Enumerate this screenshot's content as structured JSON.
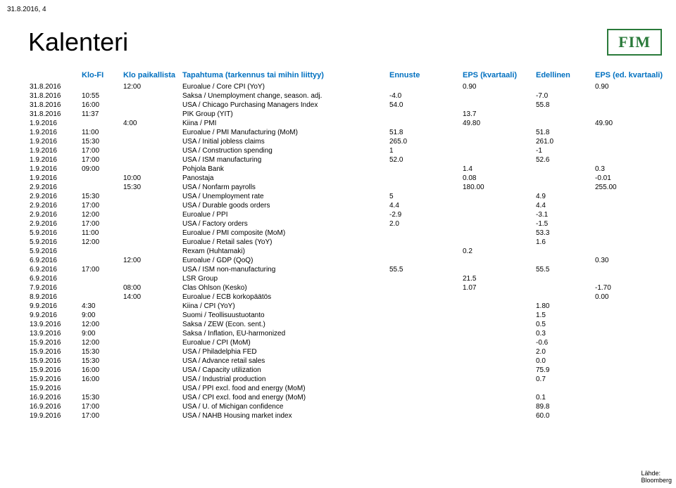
{
  "pageHeader": "31.8.2016, 4",
  "title": "Kalenteri",
  "logo": "FIM",
  "columns": {
    "date": "",
    "fi": "Klo-FI",
    "local": "Klo paikallista",
    "event": "Tapahtuma (tarkennus tai mihin liittyy)",
    "est": "Ennuste",
    "eps": "EPS (kvartaali)",
    "prev": "Edellinen",
    "eps2": "EPS (ed. kvartaali)"
  },
  "source": {
    "label": "Lähde:",
    "value": "Bloomberg"
  },
  "rows": [
    {
      "date": "31.8.2016",
      "fi": "",
      "local": "12:00",
      "event": "Euroalue / Core CPI (YoY)",
      "est": "",
      "eps": "0.90",
      "prev": "",
      "eps2": "0.90"
    },
    {
      "date": "31.8.2016",
      "fi": "10:55",
      "local": "",
      "event": "Saksa / Unemployment change, season. adj.",
      "est": "-4.0",
      "eps": "",
      "prev": "-7.0",
      "eps2": ""
    },
    {
      "date": "31.8.2016",
      "fi": "16:00",
      "local": "",
      "event": "USA / Chicago Purchasing Managers Index",
      "est": "54.0",
      "eps": "",
      "prev": "55.8",
      "eps2": ""
    },
    {
      "date": "31.8.2016",
      "fi": "11:37",
      "local": "",
      "event": "PIK Group (YIT)",
      "est": "",
      "eps": "13.7",
      "prev": "",
      "eps2": ""
    },
    {
      "date": "1.9.2016",
      "fi": "",
      "local": "4:00",
      "event": "Kiina / PMI",
      "est": "",
      "eps": "49.80",
      "prev": "",
      "eps2": "49.90"
    },
    {
      "date": "1.9.2016",
      "fi": "11:00",
      "local": "",
      "event": "Euroalue / PMI Manufacturing (MoM)",
      "est": "51.8",
      "eps": "",
      "prev": "51.8",
      "eps2": ""
    },
    {
      "date": "1.9.2016",
      "fi": "15:30",
      "local": "",
      "event": "USA / Initial jobless claims",
      "est": "265.0",
      "eps": "",
      "prev": "261.0",
      "eps2": ""
    },
    {
      "date": "1.9.2016",
      "fi": "17:00",
      "local": "",
      "event": "USA / Construction spending",
      "est": "1",
      "eps": "",
      "prev": "-1",
      "eps2": ""
    },
    {
      "date": "1.9.2016",
      "fi": "17:00",
      "local": "",
      "event": "USA / ISM manufacturing",
      "est": "52.0",
      "eps": "",
      "prev": "52.6",
      "eps2": ""
    },
    {
      "date": "1.9.2016",
      "fi": "09:00",
      "local": "",
      "event": "Pohjola Bank",
      "est": "",
      "eps": "1.4",
      "prev": "",
      "eps2": "0.3"
    },
    {
      "date": "1.9.2016",
      "fi": "",
      "local": "10:00",
      "event": "Panostaja",
      "est": "",
      "eps": "0.08",
      "prev": "",
      "eps2": "-0.01"
    },
    {
      "date": "2.9.2016",
      "fi": "",
      "local": "15:30",
      "event": "USA / Nonfarm payrolls",
      "est": "",
      "eps": "180.00",
      "prev": "",
      "eps2": "255.00"
    },
    {
      "date": "2.9.2016",
      "fi": "15:30",
      "local": "",
      "event": "USA / Unemployment rate",
      "est": "5",
      "eps": "",
      "prev": "4.9",
      "eps2": ""
    },
    {
      "date": "2.9.2016",
      "fi": "17:00",
      "local": "",
      "event": "USA / Durable goods orders",
      "est": "4.4",
      "eps": "",
      "prev": "4.4",
      "eps2": ""
    },
    {
      "date": "2.9.2016",
      "fi": "12:00",
      "local": "",
      "event": "Euroalue / PPI",
      "est": "-2.9",
      "eps": "",
      "prev": "-3.1",
      "eps2": ""
    },
    {
      "date": "2.9.2016",
      "fi": "17:00",
      "local": "",
      "event": "USA / Factory orders",
      "est": "2.0",
      "eps": "",
      "prev": "-1.5",
      "eps2": ""
    },
    {
      "date": "5.9.2016",
      "fi": "11:00",
      "local": "",
      "event": "Euroalue / PMI composite (MoM)",
      "est": "",
      "eps": "",
      "prev": "53.3",
      "eps2": ""
    },
    {
      "date": "5.9.2016",
      "fi": "12:00",
      "local": "",
      "event": "Euroalue / Retail sales (YoY)",
      "est": "",
      "eps": "",
      "prev": "1.6",
      "eps2": ""
    },
    {
      "date": "5.9.2016",
      "fi": "",
      "local": "",
      "event": "Rexam  (Huhtamaki)",
      "est": "",
      "eps": "0.2",
      "prev": "",
      "eps2": ""
    },
    {
      "date": "6.9.2016",
      "fi": "",
      "local": "12:00",
      "event": "Euroalue / GDP (QoQ)",
      "est": "",
      "eps": "",
      "prev": "",
      "eps2": "0.30"
    },
    {
      "date": "6.9.2016",
      "fi": "17:00",
      "local": "",
      "event": "USA / ISM non-manufacturing",
      "est": "55.5",
      "eps": "",
      "prev": "55.5",
      "eps2": ""
    },
    {
      "date": "6.9.2016",
      "fi": "",
      "local": "",
      "event": "LSR Group",
      "est": "",
      "eps": "21.5",
      "prev": "",
      "eps2": ""
    },
    {
      "date": "7.9.2016",
      "fi": "",
      "local": "08:00",
      "event": "Clas Ohlson  (Kesko)",
      "est": "",
      "eps": "1.07",
      "prev": "",
      "eps2": "-1.70"
    },
    {
      "date": "8.9.2016",
      "fi": "",
      "local": "14:00",
      "event": "Euroalue / ECB korkopäätös",
      "est": "",
      "eps": "",
      "prev": "",
      "eps2": "0.00"
    },
    {
      "date": "9.9.2016",
      "fi": "4:30",
      "local": "",
      "event": "Kiina / CPI (YoY)",
      "est": "",
      "eps": "",
      "prev": "1.80",
      "eps2": ""
    },
    {
      "date": "9.9.2016",
      "fi": "9:00",
      "local": "",
      "event": "Suomi / Teollisuustuotanto",
      "est": "",
      "eps": "",
      "prev": "1.5",
      "eps2": ""
    },
    {
      "date": "13.9.2016",
      "fi": "12:00",
      "local": "",
      "event": "Saksa / ZEW (Econ. sent.)",
      "est": "",
      "eps": "",
      "prev": "0.5",
      "eps2": ""
    },
    {
      "date": "13.9.2016",
      "fi": "9:00",
      "local": "",
      "event": "Saksa / Inflation, EU-harmonized",
      "est": "",
      "eps": "",
      "prev": "0.3",
      "eps2": ""
    },
    {
      "date": "15.9.2016",
      "fi": "12:00",
      "local": "",
      "event": "Euroalue / CPI (MoM)",
      "est": "",
      "eps": "",
      "prev": "-0.6",
      "eps2": ""
    },
    {
      "date": "15.9.2016",
      "fi": "15:30",
      "local": "",
      "event": "USA / Philadelphia FED",
      "est": "",
      "eps": "",
      "prev": "2.0",
      "eps2": ""
    },
    {
      "date": "15.9.2016",
      "fi": "15:30",
      "local": "",
      "event": "USA / Advance retail sales",
      "est": "",
      "eps": "",
      "prev": "0.0",
      "eps2": ""
    },
    {
      "date": "15.9.2016",
      "fi": "16:00",
      "local": "",
      "event": "USA / Capacity utilization",
      "est": "",
      "eps": "",
      "prev": "75.9",
      "eps2": ""
    },
    {
      "date": "15.9.2016",
      "fi": "16:00",
      "local": "",
      "event": "USA / Industrial production",
      "est": "",
      "eps": "",
      "prev": "0.7",
      "eps2": ""
    },
    {
      "date": "15.9.2016",
      "fi": "",
      "local": "",
      "event": "USA / PPI excl. food and energy (MoM)",
      "est": "",
      "eps": "",
      "prev": "",
      "eps2": ""
    },
    {
      "date": "16.9.2016",
      "fi": "15:30",
      "local": "",
      "event": "USA / CPI excl. food and energy (MoM)",
      "est": "",
      "eps": "",
      "prev": "0.1",
      "eps2": ""
    },
    {
      "date": "16.9.2016",
      "fi": "17:00",
      "local": "",
      "event": "USA / U. of Michigan confidence",
      "est": "",
      "eps": "",
      "prev": "89.8",
      "eps2": ""
    },
    {
      "date": "19.9.2016",
      "fi": "17:00",
      "local": "",
      "event": "USA / NAHB Housing market index",
      "est": "",
      "eps": "",
      "prev": "60.0",
      "eps2": ""
    }
  ]
}
